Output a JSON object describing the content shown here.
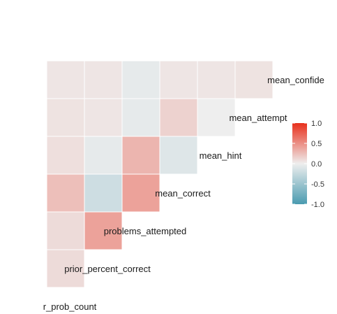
{
  "chart_data": {
    "type": "heatmap",
    "subtype": "lower-triangle correlation matrix",
    "variables": [
      "r_prob_count",
      "prior_percent_correct",
      "problems_attempted",
      "mean_correct",
      "mean_hint",
      "mean_attempt",
      "mean_confide"
    ],
    "cells": [
      {
        "row": "prior_percent_correct",
        "col": "r_prob_count",
        "value": 0.1
      },
      {
        "row": "problems_attempted",
        "col": "r_prob_count",
        "value": 0.1
      },
      {
        "row": "problems_attempted",
        "col": "prior_percent_correct",
        "value": 0.4
      },
      {
        "row": "mean_correct",
        "col": "r_prob_count",
        "value": 0.25
      },
      {
        "row": "mean_correct",
        "col": "prior_percent_correct",
        "value": -0.2
      },
      {
        "row": "mean_correct",
        "col": "problems_attempted",
        "value": 0.4
      },
      {
        "row": "mean_hint",
        "col": "r_prob_count",
        "value": 0.08
      },
      {
        "row": "mean_hint",
        "col": "prior_percent_correct",
        "value": -0.05
      },
      {
        "row": "mean_hint",
        "col": "problems_attempted",
        "value": 0.3
      },
      {
        "row": "mean_hint",
        "col": "mean_correct",
        "value": -0.1
      },
      {
        "row": "mean_attempt",
        "col": "r_prob_count",
        "value": 0.06
      },
      {
        "row": "mean_attempt",
        "col": "prior_percent_correct",
        "value": 0.05
      },
      {
        "row": "mean_attempt",
        "col": "problems_attempted",
        "value": -0.05
      },
      {
        "row": "mean_attempt",
        "col": "mean_correct",
        "value": 0.15
      },
      {
        "row": "mean_attempt",
        "col": "mean_hint",
        "value": 0.0
      },
      {
        "row": "mean_confide",
        "col": "r_prob_count",
        "value": 0.05
      },
      {
        "row": "mean_confide",
        "col": "prior_percent_correct",
        "value": 0.05
      },
      {
        "row": "mean_confide",
        "col": "problems_attempted",
        "value": -0.05
      },
      {
        "row": "mean_confide",
        "col": "mean_correct",
        "value": 0.05
      },
      {
        "row": "mean_confide",
        "col": "mean_hint",
        "value": 0.05
      },
      {
        "row": "mean_confide",
        "col": "mean_attempt",
        "value": 0.06
      }
    ],
    "color_scale": {
      "min": -1.0,
      "max": 1.0,
      "low_color": "#4a9bb0",
      "mid_color": "#eeeeee",
      "high_color": "#e8301c",
      "ticks": [
        "1.0",
        "0.5",
        "0.0",
        "-0.5",
        "-1.0"
      ],
      "tick_values": [
        1.0,
        0.5,
        0.0,
        -0.5,
        -1.0
      ]
    },
    "legend_position": "right",
    "grid": false,
    "title": "",
    "xlabel": "",
    "ylabel": ""
  }
}
